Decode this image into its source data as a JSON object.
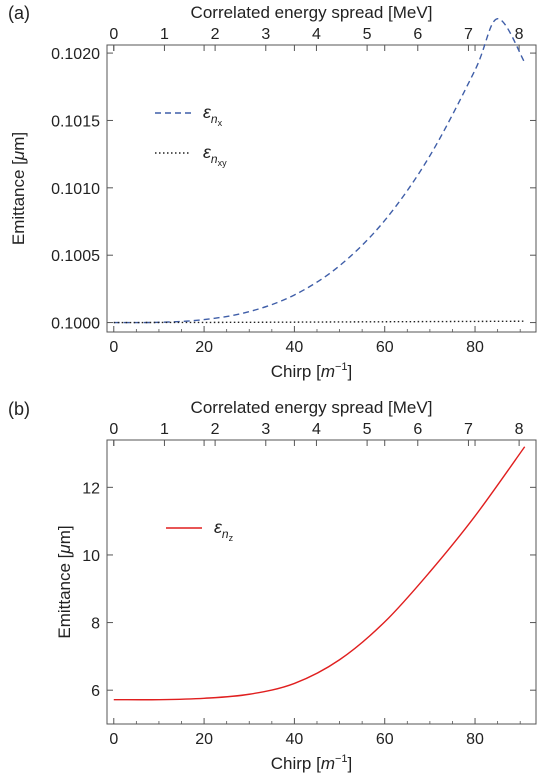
{
  "chart_data": [
    {
      "type": "line",
      "panel_label": "(a)",
      "xlabel": "Chirp [m⁻¹]",
      "xlabel_parts": [
        "Chirp [",
        "m",
        "−1",
        "]"
      ],
      "ylabel": "Emittance [μm]",
      "ylabel_parts": [
        "Emittance [",
        "μ",
        "m]"
      ],
      "top_xlabel": "Correlated energy spread [MeV]",
      "xlim": [
        -1.5,
        93.5
      ],
      "ylim": [
        0.09993,
        0.10206
      ],
      "x_ticks": [
        0,
        20,
        40,
        60,
        80
      ],
      "x_tick_labels": [
        "0",
        "20",
        "40",
        "60",
        "80"
      ],
      "y_ticks": [
        0.1,
        0.1005,
        0.101,
        0.1015,
        0.102
      ],
      "y_tick_labels": [
        "0.1000",
        "0.1005",
        "0.1010",
        "0.1015",
        "0.1020"
      ],
      "top_ticks": [
        0,
        1,
        2,
        3,
        4,
        5,
        6,
        7,
        8
      ],
      "top_tick_labels": [
        "0",
        "1",
        "2",
        "3",
        "4",
        "5",
        "6",
        "7",
        "8"
      ],
      "top_to_bottom_scale": 11.22,
      "legend_position": "upper-left",
      "series": [
        {
          "legend_symbol": "ε",
          "legend_subscript": "n",
          "legend_subsubscript": "x",
          "color": "#3f5ea8",
          "style": "dashed",
          "x": [
            0,
            10,
            20,
            30,
            40,
            50,
            60,
            70,
            80,
            85,
            91
          ],
          "y": [
            0.1,
            0.100002,
            0.100022,
            0.100081,
            0.100205,
            0.100422,
            0.100758,
            0.101238,
            0.101874,
            0.102255,
            0.10193
          ]
        },
        {
          "legend_symbol": "ε",
          "legend_subscript": "n",
          "legend_subsubscript": "xy",
          "color": "#222222",
          "style": "dotted",
          "x": [
            0,
            30,
            60,
            91
          ],
          "y": [
            0.1,
            0.100002,
            0.100006,
            0.10001
          ]
        }
      ]
    },
    {
      "type": "line",
      "panel_label": "(b)",
      "xlabel": "Chirp [m⁻¹]",
      "xlabel_parts": [
        "Chirp [",
        "m",
        "−1",
        "]"
      ],
      "ylabel": "Emittance [μm]",
      "ylabel_parts": [
        "Emittance [",
        "μ",
        "m]"
      ],
      "top_xlabel": "Correlated energy spread [MeV]",
      "xlim": [
        -1.5,
        93.5
      ],
      "ylim": [
        5.0,
        13.4
      ],
      "x_ticks": [
        0,
        20,
        40,
        60,
        80
      ],
      "x_tick_labels": [
        "0",
        "20",
        "40",
        "60",
        "80"
      ],
      "y_ticks": [
        6,
        8,
        10,
        12
      ],
      "y_tick_labels": [
        "6",
        "8",
        "10",
        "12"
      ],
      "top_ticks": [
        0,
        1,
        2,
        3,
        4,
        5,
        6,
        7,
        8
      ],
      "top_tick_labels": [
        "0",
        "1",
        "2",
        "3",
        "4",
        "5",
        "6",
        "7",
        "8"
      ],
      "top_to_bottom_scale": 11.22,
      "legend_position": "upper-left",
      "series": [
        {
          "legend_symbol": "ε",
          "legend_subscript": "n",
          "legend_subsubscript": "z",
          "color": "#e01f1f",
          "style": "solid",
          "x": [
            0,
            10,
            20,
            30,
            40,
            50,
            60,
            70,
            80,
            91
          ],
          "y": [
            5.72,
            5.72,
            5.76,
            5.88,
            6.2,
            6.9,
            8.02,
            9.5,
            11.15,
            13.2
          ]
        }
      ]
    }
  ]
}
